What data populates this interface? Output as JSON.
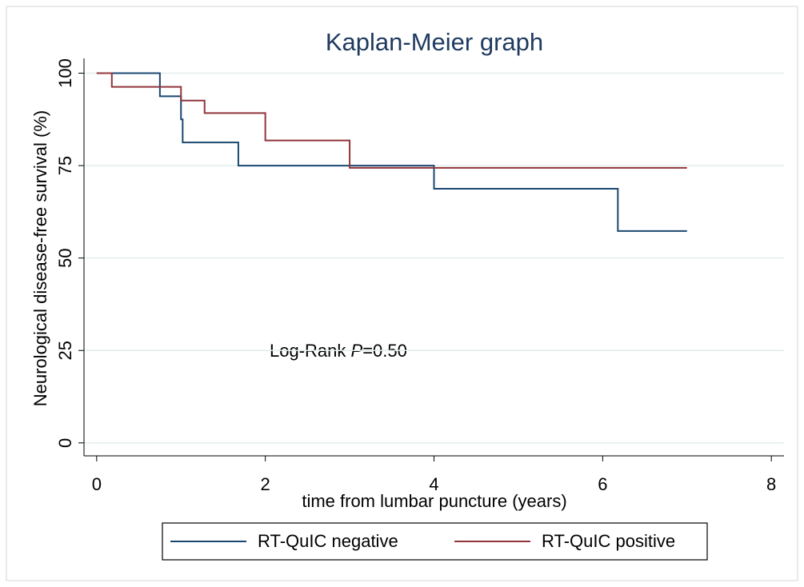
{
  "chart_data": {
    "type": "line",
    "drawstyle": "steps-post",
    "title": "Kaplan-Meier graph",
    "xlabel": "time from lumbar puncture (years)",
    "ylabel": "Neurological disease-free survival (%)",
    "annotation": [
      "Log-Rank",
      "P",
      "=0.50"
    ],
    "xlim": [
      -0.15,
      8.15
    ],
    "ylim": [
      -3.5,
      104
    ],
    "xticks": [
      0,
      2,
      4,
      6,
      8
    ],
    "yticks": [
      0,
      25,
      50,
      75,
      100
    ],
    "grid": true,
    "legend": "bottom",
    "series": [
      {
        "name": "RT-QuIC negative",
        "color": "#1a476f",
        "x": [
          0,
          0.75,
          1.0,
          1.02,
          1.68,
          4.0,
          6.18,
          7.0
        ],
        "values": [
          100,
          93.75,
          87.5,
          81.25,
          75,
          68.75,
          57.3,
          57.3
        ]
      },
      {
        "name": "RT-QuIC positive",
        "color": "#90353b",
        "x": [
          0,
          0.18,
          1.0,
          1.28,
          2.0,
          3.0,
          7.0
        ],
        "values": [
          100,
          96.3,
          92.6,
          89.2,
          81.8,
          74.4,
          74.4
        ]
      }
    ]
  }
}
